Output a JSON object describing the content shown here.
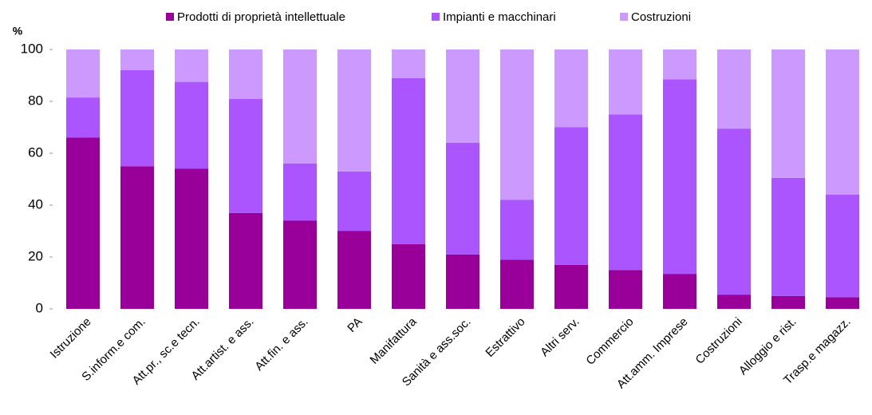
{
  "chart_data": {
    "type": "stacked_bar",
    "ylabel": "%",
    "categories": [
      "Istruzione",
      "S.inform.e com.",
      "Att.pr., sc.e tecn.",
      "Att.artist. e ass.",
      "Att.fin. e ass.",
      "PA",
      "Manifattura",
      "Sanità e ass.soc.",
      "Estrattivo",
      "Altri serv.",
      "Commercio",
      "Att.amm. Imprese",
      "Costruzioni",
      "Alloggio e rist.",
      "Trasp.e magazz."
    ],
    "series": [
      {
        "name": "Prodotti di proprietà intellettuale",
        "color": "#990099",
        "values": [
          66,
          55,
          54,
          37,
          34,
          30,
          25,
          21,
          19,
          17,
          15,
          13.5,
          5.5,
          5,
          4.5
        ]
      },
      {
        "name": "Impianti e macchinari",
        "color": "#aa55ff",
        "values": [
          15.5,
          37,
          33.5,
          44,
          22,
          23,
          64,
          43,
          23,
          53,
          60,
          75,
          64,
          45.5,
          39.5
        ]
      },
      {
        "name": "Costruzioni",
        "color": "#cc99ff",
        "values": [
          18.5,
          8,
          12.5,
          19,
          44,
          47,
          11,
          36,
          58,
          30,
          25,
          11.5,
          30.5,
          49.5,
          56
        ]
      }
    ],
    "ylim": [
      0,
      100
    ],
    "yticks": [
      0,
      20,
      40,
      60,
      80,
      100
    ],
    "grid": false,
    "legend": "top"
  }
}
